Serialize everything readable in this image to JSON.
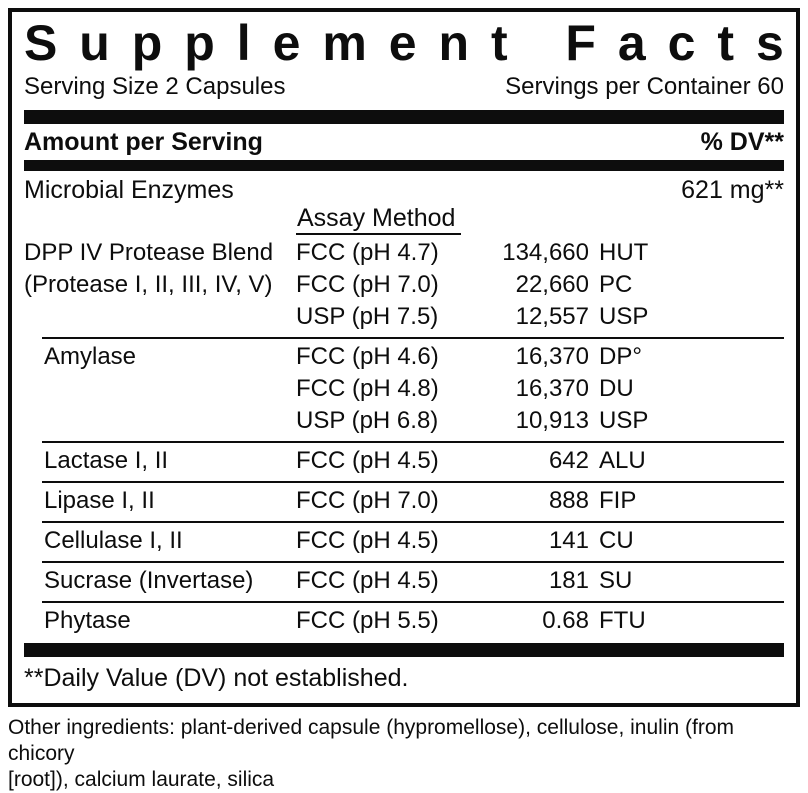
{
  "label": {
    "title": "Supplement Facts",
    "serving_size": "Serving Size 2 Capsules",
    "servings_per_container": "Servings per Container 60",
    "amount_per_serving_header": "Amount per Serving",
    "dv_header": "% DV**",
    "total_row": {
      "name": "Microbial Enzymes",
      "amount": "621 mg**"
    },
    "assay_method_header": "Assay Method",
    "enzyme_groups": [
      {
        "name_lines": [
          "DPP IV Protease Blend",
          "(Protease I, II, III, IV, V)"
        ],
        "indent": false,
        "rows": [
          {
            "assay": "FCC (pH 4.7)",
            "value": "134,660",
            "unit": "HUT"
          },
          {
            "assay": "FCC (pH 7.0)",
            "value": "22,660",
            "unit": "PC"
          },
          {
            "assay": "USP (pH 7.5)",
            "value": "12,557",
            "unit": "USP"
          }
        ]
      },
      {
        "name_lines": [
          "Amylase"
        ],
        "indent": true,
        "rows": [
          {
            "assay": "FCC (pH 4.6)",
            "value": "16,370",
            "unit": "DP°"
          },
          {
            "assay": "FCC (pH 4.8)",
            "value": "16,370",
            "unit": "DU"
          },
          {
            "assay": "USP (pH 6.8)",
            "value": "10,913",
            "unit": "USP"
          }
        ]
      },
      {
        "name_lines": [
          "Lactase I, II"
        ],
        "indent": true,
        "rows": [
          {
            "assay": "FCC (pH 4.5)",
            "value": "642",
            "unit": "ALU"
          }
        ]
      },
      {
        "name_lines": [
          "Lipase I, II"
        ],
        "indent": true,
        "rows": [
          {
            "assay": "FCC (pH 7.0)",
            "value": "888",
            "unit": "FIP"
          }
        ]
      },
      {
        "name_lines": [
          "Cellulase I, II"
        ],
        "indent": true,
        "rows": [
          {
            "assay": "FCC (pH 4.5)",
            "value": "141",
            "unit": "CU"
          }
        ]
      },
      {
        "name_lines": [
          "Sucrase (Invertase)"
        ],
        "indent": true,
        "rows": [
          {
            "assay": "FCC (pH 4.5)",
            "value": "181",
            "unit": "SU"
          }
        ]
      },
      {
        "name_lines": [
          "Phytase"
        ],
        "indent": true,
        "rows": [
          {
            "assay": "FCC (pH 5.5)",
            "value": "0.68",
            "unit": "FTU"
          }
        ]
      }
    ],
    "footnote": "**Daily Value (DV) not established.",
    "other_ingredients_lines": [
      "Other ingredients: plant-derived capsule (hypromellose), cellulose, inulin (from chicory",
      "[root]), calcium laurate, silica"
    ],
    "colors": {
      "ink": "#0d0d0d",
      "background": "#ffffff"
    }
  }
}
